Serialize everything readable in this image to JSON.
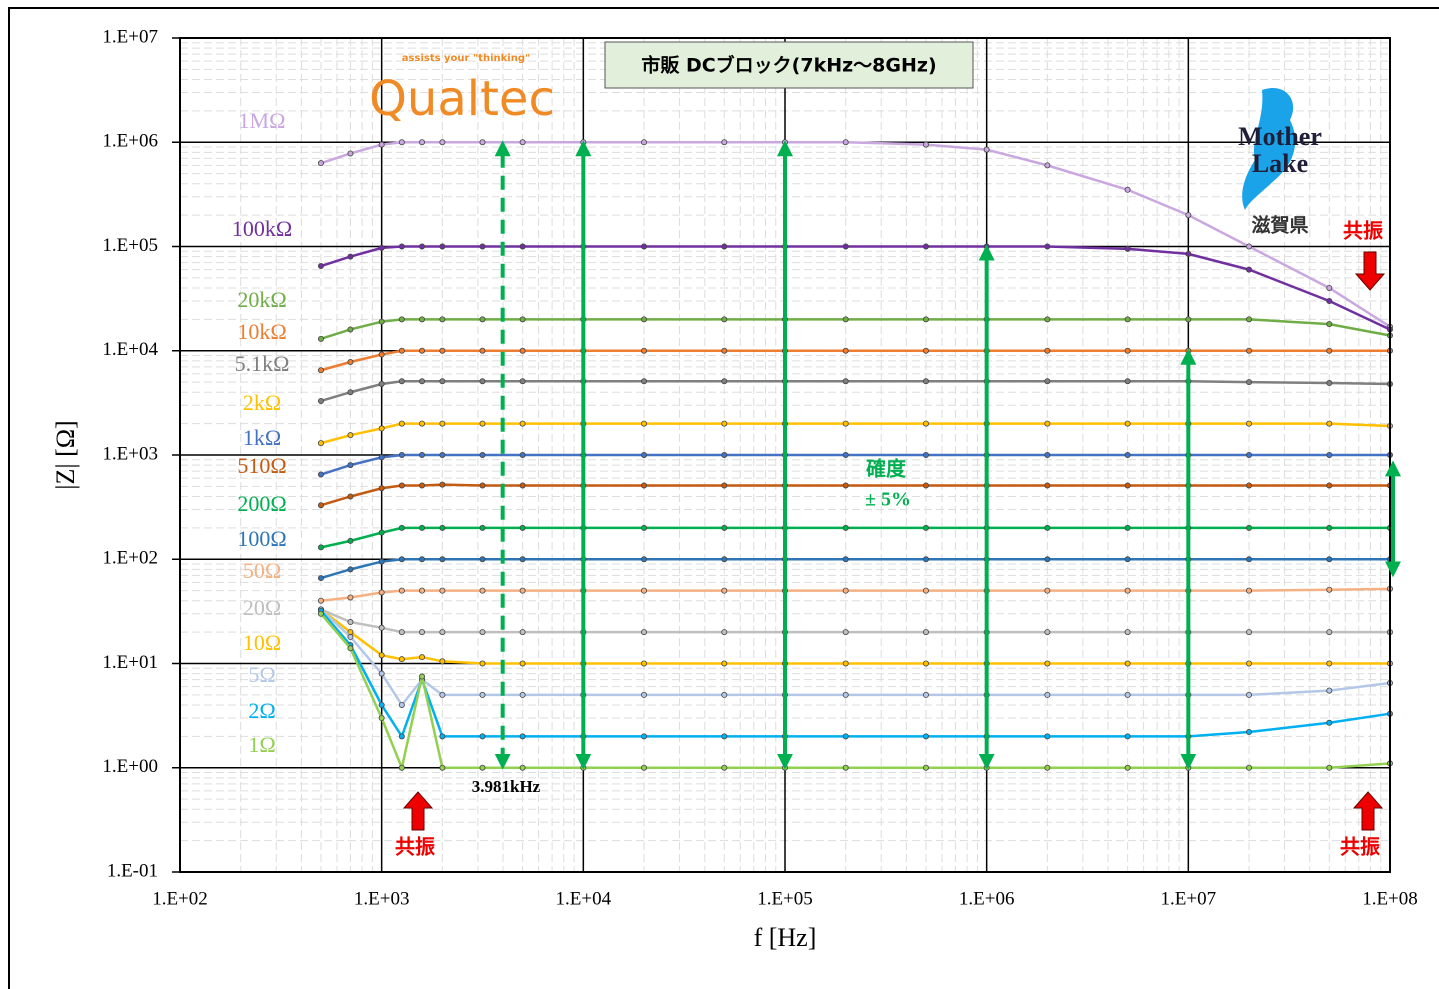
{
  "chart_data": {
    "type": "line",
    "title": "市販 DCブロック(7kHz～8GHz)",
    "x_label": "f [Hz]",
    "y_label": "|Z| [Ω]",
    "log_x": true,
    "log_y": true,
    "grid": true,
    "minor_grid": true,
    "xlim": [
      100,
      100000000
    ],
    "ylim": [
      0.1,
      10000000
    ],
    "xticks": [
      {
        "value": 100,
        "label": "1.E+02"
      },
      {
        "value": 1000,
        "label": "1.E+03"
      },
      {
        "value": 10000,
        "label": "1.E+04"
      },
      {
        "value": 100000,
        "label": "1.E+05"
      },
      {
        "value": 1000000,
        "label": "1.E+06"
      },
      {
        "value": 10000000,
        "label": "1.E+07"
      },
      {
        "value": 100000000,
        "label": "1.E+08"
      }
    ],
    "yticks": [
      {
        "value": 0.1,
        "label": "1.E-01"
      },
      {
        "value": 1,
        "label": "1.E+00"
      },
      {
        "value": 10,
        "label": "1.E+01"
      },
      {
        "value": 100,
        "label": "1.E+02"
      },
      {
        "value": 1000,
        "label": "1.E+03"
      },
      {
        "value": 10000,
        "label": "1.E+04"
      },
      {
        "value": 100000,
        "label": "1.E+05"
      },
      {
        "value": 1000000,
        "label": "1.E+06"
      },
      {
        "value": 10000000,
        "label": "1.E+07"
      }
    ],
    "x": [
      500,
      700,
      1000,
      1259,
      1585,
      2000,
      3162,
      5000,
      10000,
      20000,
      50000,
      100000,
      200000,
      500000,
      1000000,
      2000000,
      5000000,
      10000000,
      20000000,
      50000000,
      100000000
    ],
    "series": [
      {
        "name": "1MΩ",
        "color": "#c9a8e0",
        "values": [
          630000,
          780000,
          950000,
          1000000,
          1000000,
          1000000,
          1000000,
          1000000,
          1000000,
          1000000,
          1000000,
          1000000,
          1000000,
          950000,
          850000,
          600000,
          350000,
          200000,
          100000,
          40000,
          17000
        ]
      },
      {
        "name": "100kΩ",
        "color": "#7030a0",
        "values": [
          65000,
          80000,
          97000,
          100000,
          100000,
          100000,
          100000,
          100000,
          100000,
          100000,
          100000,
          100000,
          100000,
          100000,
          100000,
          100000,
          95000,
          85000,
          60000,
          30000,
          16000
        ]
      },
      {
        "name": "20kΩ",
        "color": "#70ad47",
        "values": [
          13000,
          16000,
          19000,
          20000,
          20000,
          20000,
          20000,
          20000,
          20000,
          20000,
          20000,
          20000,
          20000,
          20000,
          20000,
          20000,
          20000,
          20000,
          20000,
          18000,
          14000
        ]
      },
      {
        "name": "10kΩ",
        "color": "#ed7d31",
        "values": [
          6500,
          7800,
          9200,
          10000,
          10000,
          10000,
          10000,
          10000,
          10000,
          10000,
          10000,
          10000,
          10000,
          10000,
          10000,
          10000,
          10000,
          10000,
          10000,
          10000,
          10000
        ]
      },
      {
        "name": "5.1kΩ",
        "color": "#7f7f7f",
        "values": [
          3300,
          4000,
          4800,
          5100,
          5100,
          5100,
          5100,
          5100,
          5100,
          5100,
          5100,
          5100,
          5100,
          5100,
          5100,
          5100,
          5100,
          5100,
          5000,
          4900,
          4800
        ]
      },
      {
        "name": "2kΩ",
        "color": "#ffc000",
        "values": [
          1300,
          1550,
          1800,
          2000,
          2000,
          2000,
          2000,
          2000,
          2000,
          2000,
          2000,
          2000,
          2000,
          2000,
          2000,
          2000,
          2000,
          2000,
          2000,
          2000,
          1900
        ]
      },
      {
        "name": "1kΩ",
        "color": "#4472c4",
        "values": [
          650,
          800,
          950,
          1000,
          1000,
          1000,
          1000,
          1000,
          1000,
          1000,
          1000,
          1000,
          1000,
          1000,
          1000,
          1000,
          1000,
          1000,
          1000,
          1000,
          1000
        ]
      },
      {
        "name": "510Ω",
        "color": "#c55a11",
        "values": [
          330,
          400,
          480,
          510,
          510,
          520,
          510,
          510,
          510,
          510,
          510,
          510,
          510,
          510,
          510,
          510,
          510,
          510,
          510,
          510,
          510
        ]
      },
      {
        "name": "200Ω",
        "color": "#00b050",
        "values": [
          130,
          150,
          180,
          200,
          200,
          200,
          200,
          200,
          200,
          200,
          200,
          200,
          200,
          200,
          200,
          200,
          200,
          200,
          200,
          200,
          200
        ]
      },
      {
        "name": "100Ω",
        "color": "#2e75b6",
        "values": [
          66,
          80,
          95,
          100,
          100,
          100,
          100,
          100,
          100,
          100,
          100,
          100,
          100,
          100,
          100,
          100,
          100,
          100,
          100,
          100,
          100
        ]
      },
      {
        "name": "50Ω",
        "color": "#f4b183",
        "values": [
          40,
          43,
          48,
          50,
          50,
          50,
          50,
          50,
          50,
          50,
          50,
          50,
          50,
          50,
          50,
          50,
          50,
          50,
          50,
          51,
          52
        ]
      },
      {
        "name": "20Ω",
        "color": "#bfbfbf",
        "values": [
          33,
          25,
          22,
          20,
          20,
          20,
          20,
          20,
          20,
          20,
          20,
          20,
          20,
          20,
          20,
          20,
          20,
          20,
          20,
          20,
          20
        ]
      },
      {
        "name": "10Ω",
        "color": "#ffc000",
        "values": [
          33,
          20,
          12,
          11,
          11.5,
          10.5,
          10,
          10,
          10,
          10,
          10,
          10,
          10,
          10,
          10,
          10,
          10,
          10,
          10,
          10,
          10
        ]
      },
      {
        "name": "5Ω",
        "color": "#b4c7e7",
        "values": [
          33,
          18,
          8,
          4,
          7,
          5,
          5,
          5,
          5,
          5,
          5,
          5,
          5,
          5,
          5,
          5,
          5,
          5,
          5,
          5.5,
          6.5
        ]
      },
      {
        "name": "2Ω",
        "color": "#00b0f0",
        "values": [
          32,
          15,
          4,
          2,
          7,
          2,
          2,
          2,
          2,
          2,
          2,
          2,
          2,
          2,
          2,
          2,
          2,
          2,
          2.2,
          2.7,
          3.3
        ]
      },
      {
        "name": "1Ω",
        "color": "#92d050",
        "values": [
          30,
          14,
          3,
          1,
          7.5,
          1,
          1,
          1,
          1,
          1,
          1,
          1,
          1,
          1,
          1,
          1,
          1,
          1,
          1,
          1,
          1.1
        ]
      }
    ],
    "accuracy_arrows": [
      {
        "x": 3981,
        "y": [
          1,
          1000000
        ],
        "dashed": true
      },
      {
        "x": 10000,
        "y": [
          1,
          1000000
        ],
        "dashed": false
      },
      {
        "x": 100000,
        "y": [
          1,
          1000000
        ],
        "dashed": false
      },
      {
        "x": 1000000,
        "y": [
          1,
          100000
        ],
        "dashed": false
      },
      {
        "x": 10000000,
        "y": [
          1,
          10000
        ],
        "dashed": false
      },
      {
        "x": 100000000,
        "y": [
          70,
          850
        ],
        "dashed": false
      }
    ],
    "annotations": {
      "frequency_note": "3.981kHz",
      "accuracy": "確度",
      "accuracy_value": "± 5%",
      "resonance_top": "共振",
      "resonance_bottom_left": "共振",
      "resonance_bottom_right": "共振"
    },
    "logo": {
      "tagline": "assists your \"thinking\"",
      "name": "Qualtec"
    },
    "badge": {
      "line1": "Mother",
      "line2": "Lake",
      "prefecture": "滋賀県"
    }
  }
}
